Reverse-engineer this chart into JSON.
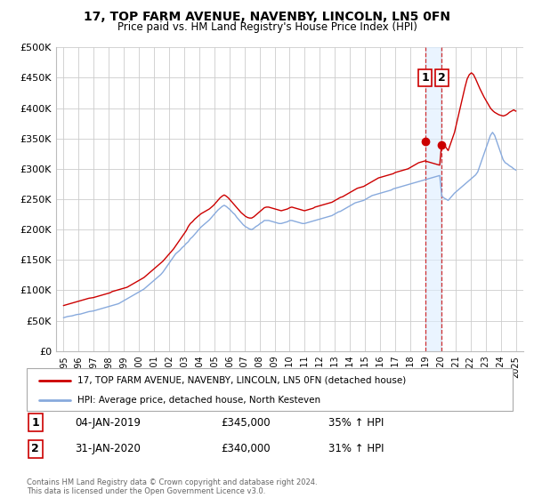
{
  "title": "17, TOP FARM AVENUE, NAVENBY, LINCOLN, LN5 0FN",
  "subtitle": "Price paid vs. HM Land Registry's House Price Index (HPI)",
  "legend_line1": "17, TOP FARM AVENUE, NAVENBY, LINCOLN, LN5 0FN (detached house)",
  "legend_line2": "HPI: Average price, detached house, North Kesteven",
  "footnote": "Contains HM Land Registry data © Crown copyright and database right 2024.\nThis data is licensed under the Open Government Licence v3.0.",
  "point1_label": "1",
  "point1_date": "04-JAN-2019",
  "point1_price": "£345,000",
  "point1_hpi": "35% ↑ HPI",
  "point2_label": "2",
  "point2_date": "31-JAN-2020",
  "point2_price": "£340,000",
  "point2_hpi": "31% ↑ HPI",
  "red_color": "#cc0000",
  "blue_color": "#88aadd",
  "shade_color": "#ddeeff",
  "background_color": "#ffffff",
  "grid_color": "#cccccc",
  "point1_x": 2019.0,
  "point1_y": 345000,
  "point2_x": 2020.08,
  "point2_y": 340000,
  "ylim": [
    0,
    500000
  ],
  "xlim_left": 1994.5,
  "xlim_right": 2025.5,
  "yticks": [
    0,
    50000,
    100000,
    150000,
    200000,
    250000,
    300000,
    350000,
    400000,
    450000,
    500000
  ],
  "ytick_labels": [
    "£0",
    "£50K",
    "£100K",
    "£150K",
    "£200K",
    "£250K",
    "£300K",
    "£350K",
    "£400K",
    "£450K",
    "£500K"
  ],
  "hpi_monthly": [
    55000,
    56000,
    57000,
    57500,
    58000,
    59000,
    60000,
    60500,
    61000,
    62000,
    63000,
    64000,
    65000,
    65500,
    66000,
    67000,
    68000,
    69000,
    70000,
    71000,
    72000,
    73000,
    74000,
    75000,
    76000,
    77000,
    78000,
    80000,
    82000,
    84000,
    86000,
    88000,
    90000,
    92000,
    94000,
    96000,
    98000,
    100000,
    102000,
    105000,
    108000,
    111000,
    114000,
    117000,
    120000,
    123000,
    126000,
    130000,
    135000,
    140000,
    145000,
    150000,
    155000,
    160000,
    163000,
    166000,
    170000,
    173000,
    177000,
    180000,
    185000,
    188000,
    192000,
    196000,
    200000,
    204000,
    207000,
    210000,
    213000,
    216000,
    220000,
    224000,
    228000,
    232000,
    235000,
    238000,
    240000,
    238000,
    235000,
    232000,
    228000,
    225000,
    220000,
    216000,
    212000,
    208000,
    205000,
    203000,
    201000,
    200000,
    202000,
    205000,
    207000,
    210000,
    212000,
    215000,
    215000,
    215000,
    214000,
    213000,
    212000,
    211000,
    210000,
    210000,
    211000,
    212000,
    213000,
    215000,
    215000,
    214000,
    213000,
    212000,
    211000,
    210000,
    210000,
    211000,
    212000,
    213000,
    214000,
    215000,
    216000,
    217000,
    218000,
    219000,
    220000,
    221000,
    222000,
    223000,
    225000,
    227000,
    229000,
    230000,
    232000,
    234000,
    236000,
    238000,
    240000,
    242000,
    244000,
    245000,
    246000,
    247000,
    248000,
    250000,
    252000,
    254000,
    256000,
    257000,
    258000,
    259000,
    260000,
    261000,
    262000,
    263000,
    264000,
    265000,
    267000,
    268000,
    269000,
    270000,
    271000,
    272000,
    273000,
    274000,
    275000,
    276000,
    277000,
    278000,
    279000,
    280000,
    281000,
    282000,
    283000,
    284000,
    285000,
    286000,
    287000,
    288000,
    289000,
    255000,
    252000,
    250000,
    248000,
    252000,
    256000,
    260000,
    263000,
    266000,
    269000,
    272000,
    275000,
    278000,
    281000,
    284000,
    287000,
    290000,
    295000,
    305000,
    315000,
    325000,
    335000,
    345000,
    355000,
    360000,
    355000,
    345000,
    335000,
    325000,
    315000,
    310000,
    308000,
    305000,
    303000,
    300000,
    298000
  ],
  "red_monthly": [
    75000,
    76000,
    77000,
    78000,
    79000,
    80000,
    81000,
    82000,
    83000,
    84000,
    85000,
    86000,
    87000,
    87500,
    88000,
    89000,
    90000,
    91000,
    92000,
    93000,
    94000,
    95000,
    96000,
    98000,
    99000,
    100000,
    101000,
    102000,
    103000,
    104000,
    105000,
    107000,
    109000,
    111000,
    113000,
    115000,
    117000,
    119000,
    121000,
    124000,
    127000,
    130000,
    133000,
    136000,
    139000,
    142000,
    145000,
    148000,
    152000,
    156000,
    160000,
    164000,
    168000,
    173000,
    178000,
    183000,
    188000,
    193000,
    198000,
    205000,
    210000,
    213000,
    217000,
    220000,
    223000,
    226000,
    228000,
    230000,
    232000,
    234000,
    237000,
    240000,
    244000,
    248000,
    252000,
    255000,
    257000,
    255000,
    252000,
    248000,
    244000,
    240000,
    236000,
    232000,
    228000,
    225000,
    222000,
    220000,
    219000,
    219000,
    221000,
    224000,
    227000,
    230000,
    233000,
    236000,
    237000,
    237000,
    236000,
    235000,
    234000,
    233000,
    232000,
    231000,
    232000,
    233000,
    234000,
    236000,
    237000,
    236000,
    235000,
    234000,
    233000,
    232000,
    231000,
    232000,
    233000,
    234000,
    235000,
    237000,
    238000,
    239000,
    240000,
    241000,
    242000,
    243000,
    244000,
    245000,
    247000,
    249000,
    251000,
    253000,
    254000,
    256000,
    258000,
    260000,
    262000,
    264000,
    266000,
    268000,
    269000,
    270000,
    271000,
    273000,
    275000,
    277000,
    279000,
    281000,
    283000,
    285000,
    286000,
    287000,
    288000,
    289000,
    290000,
    291000,
    292000,
    294000,
    295000,
    296000,
    297000,
    298000,
    299000,
    300000,
    302000,
    304000,
    306000,
    308000,
    310000,
    311000,
    312000,
    313000,
    312000,
    311000,
    310000,
    309000,
    308000,
    307000,
    306000,
    345000,
    340000,
    335000,
    330000,
    340000,
    350000,
    360000,
    375000,
    390000,
    405000,
    420000,
    435000,
    448000,
    455000,
    458000,
    455000,
    448000,
    440000,
    432000,
    425000,
    418000,
    412000,
    406000,
    400000,
    396000,
    393000,
    391000,
    389000,
    388000,
    387000,
    388000,
    390000,
    393000,
    395000,
    397000,
    395000
  ]
}
